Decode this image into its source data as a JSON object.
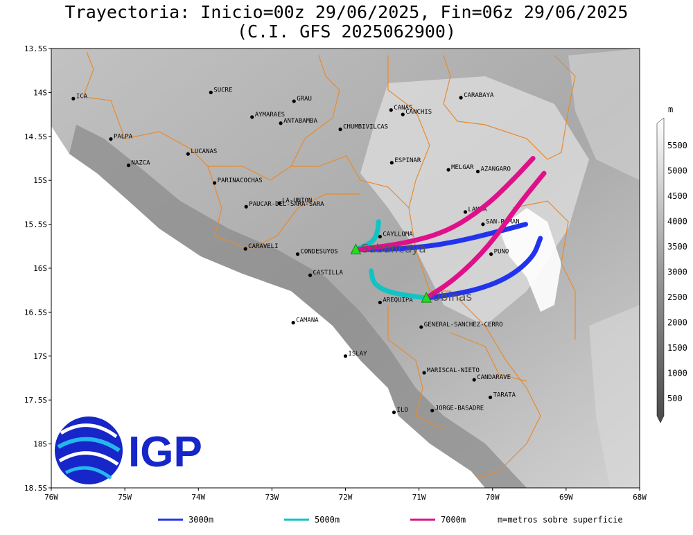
{
  "title": {
    "line1": "Trayectoria: Inicio=00z 29/06/2025, Fin=06z 29/06/2025",
    "line2": "(C.I. GFS 2025062900)"
  },
  "logo": {
    "text": "IGP"
  },
  "lat_ticks": [
    "13.5S",
    "14S",
    "14.5S",
    "15S",
    "15.5S",
    "16S",
    "16.5S",
    "17S",
    "17.5S",
    "18S",
    "18.5S"
  ],
  "lon_ticks": [
    "76W",
    "75W",
    "74W",
    "73W",
    "72W",
    "71W",
    "70W",
    "69W",
    "68W"
  ],
  "colorbar": {
    "unit": "m",
    "levels": [
      "5500",
      "5000",
      "4500",
      "4000",
      "3500",
      "3000",
      "2500",
      "2000",
      "1500",
      "1000",
      "500"
    ]
  },
  "legend": [
    {
      "label": "3000m",
      "color": "#2233ee"
    },
    {
      "label": "5000m",
      "color": "#11c4c4"
    },
    {
      "label": "7000m",
      "color": "#e0108a"
    }
  ],
  "legend_note": "m=metros sobre superficie",
  "stations": [
    {
      "name": "Sabancaya"
    },
    {
      "name": "Ubinas"
    }
  ],
  "places": [
    {
      "name": "ICA"
    },
    {
      "name": "SUCRE"
    },
    {
      "name": "GRAU"
    },
    {
      "name": "CARABAYA"
    },
    {
      "name": "CANAS"
    },
    {
      "name": "CANCHIS"
    },
    {
      "name": "AYMARAES"
    },
    {
      "name": "ANTABAMBA"
    },
    {
      "name": "CHUMBIVILCAS"
    },
    {
      "name": "PALPA"
    },
    {
      "name": "LUCANAS"
    },
    {
      "name": "ESPINAR"
    },
    {
      "name": "NAZCA"
    },
    {
      "name": "MELGAR"
    },
    {
      "name": "AZANGARO"
    },
    {
      "name": "PARINACOCHAS"
    },
    {
      "name": "LA-UNION"
    },
    {
      "name": "PAUCAR-DEL-SARA-SARA"
    },
    {
      "name": "LAMPA"
    },
    {
      "name": "SAN-ROMAN"
    },
    {
      "name": "CAYLLOMA"
    },
    {
      "name": "CARAVELI"
    },
    {
      "name": "CONDESUYOS"
    },
    {
      "name": "PUNO"
    },
    {
      "name": "CASTILLA"
    },
    {
      "name": "AREQUIPA"
    },
    {
      "name": "CAMANA"
    },
    {
      "name": "GENERAL-SANCHEZ-CERRO"
    },
    {
      "name": "ISLAY"
    },
    {
      "name": "MARISCAL-NIETO"
    },
    {
      "name": "CANDARAVE"
    },
    {
      "name": "TARATA"
    },
    {
      "name": "ILO"
    },
    {
      "name": "JORGE-BASADRE"
    }
  ],
  "trajectories": [
    {
      "source": "Sabancaya",
      "level": "3000m",
      "path": [
        [
          -71.86,
          -15.79
        ],
        [
          -71.2,
          -15.78
        ],
        [
          -70.6,
          -15.72
        ],
        [
          -70.0,
          -15.6
        ],
        [
          -69.55,
          -15.5
        ]
      ]
    },
    {
      "source": "Sabancaya",
      "level": "5000m",
      "path": [
        [
          -71.86,
          -15.79
        ],
        [
          -71.62,
          -15.7
        ],
        [
          -71.56,
          -15.58
        ],
        [
          -71.55,
          -15.47
        ]
      ]
    },
    {
      "source": "Sabancaya",
      "level": "7000m",
      "path": [
        [
          -71.86,
          -15.79
        ],
        [
          -71.2,
          -15.72
        ],
        [
          -70.6,
          -15.58
        ],
        [
          -70.1,
          -15.3
        ],
        [
          -69.75,
          -15.02
        ],
        [
          -69.45,
          -14.75
        ]
      ]
    },
    {
      "source": "Ubinas",
      "level": "3000m",
      "path": [
        [
          -70.9,
          -16.34
        ],
        [
          -70.3,
          -16.27
        ],
        [
          -69.8,
          -16.12
        ],
        [
          -69.45,
          -15.88
        ],
        [
          -69.35,
          -15.66
        ]
      ]
    },
    {
      "source": "Ubinas",
      "level": "5000m",
      "path": [
        [
          -70.9,
          -16.34
        ],
        [
          -71.4,
          -16.28
        ],
        [
          -71.62,
          -16.18
        ],
        [
          -71.65,
          -16.03
        ]
      ]
    },
    {
      "source": "Ubinas",
      "level": "7000m",
      "path": [
        [
          -70.9,
          -16.34
        ],
        [
          -70.5,
          -16.12
        ],
        [
          -70.05,
          -15.75
        ],
        [
          -69.65,
          -15.28
        ],
        [
          -69.3,
          -14.92
        ]
      ]
    }
  ]
}
